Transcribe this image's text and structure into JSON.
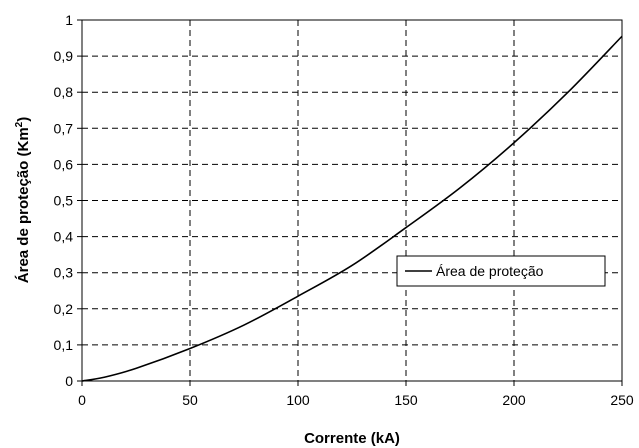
{
  "chart_data": {
    "type": "line",
    "xlabel": "Corrente (kA)",
    "ylabel_main": "Área de proteção (Km",
    "ylabel_sup": "2",
    "ylabel_close": ")",
    "xlim": [
      0,
      250
    ],
    "ylim": [
      0,
      1
    ],
    "x_ticks": [
      0,
      50,
      100,
      150,
      200,
      250
    ],
    "x_tick_labels": [
      "0",
      "50",
      "100",
      "150",
      "200",
      "250"
    ],
    "y_ticks": [
      0,
      0.1,
      0.2,
      0.3,
      0.4,
      0.5,
      0.6,
      0.7,
      0.8,
      0.9,
      1
    ],
    "y_tick_labels": [
      "0",
      "0,1",
      "0,2",
      "0,3",
      "0,4",
      "0,5",
      "0,6",
      "0,7",
      "0,8",
      "0,9",
      "1"
    ],
    "grid": true,
    "grid_style": "dashed",
    "legend_position": "right-middle",
    "series": [
      {
        "name": "Área de proteção",
        "color": "#000000",
        "x": [
          0,
          10,
          25,
          50,
          75,
          100,
          125,
          150,
          175,
          200,
          225,
          250
        ],
        "y": [
          0,
          0.01,
          0.035,
          0.09,
          0.155,
          0.235,
          0.32,
          0.425,
          0.535,
          0.66,
          0.8,
          0.955
        ]
      }
    ]
  }
}
